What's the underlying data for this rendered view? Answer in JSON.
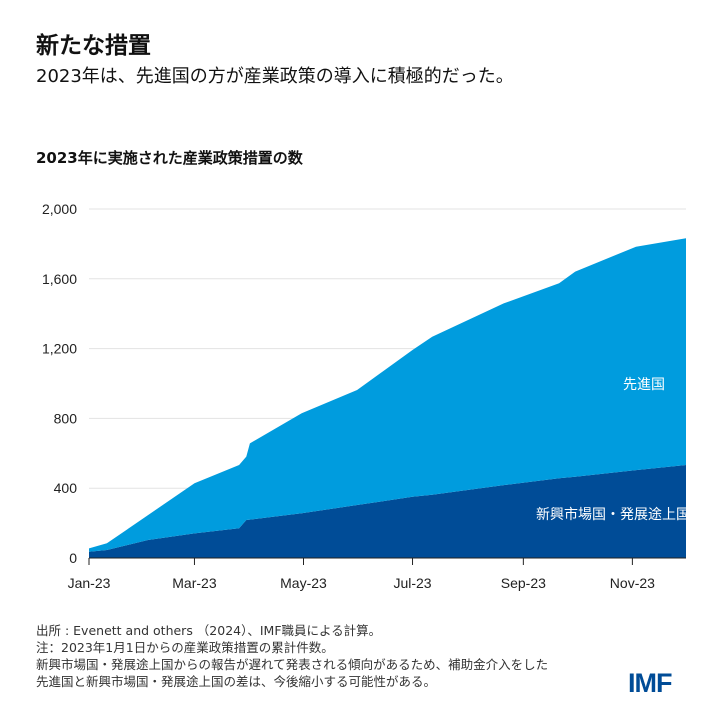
{
  "header": {
    "title": "新たな措置",
    "subtitle": "2023年は、先進国の方が産業政策の導入に積極的だった。"
  },
  "chart_data": {
    "type": "area",
    "stacked": true,
    "title": "2023年に実施された産業政策措置の数",
    "xlabel": "",
    "ylabel": "",
    "ylim": [
      0,
      2000
    ],
    "yticks": [
      0,
      400,
      800,
      1200,
      1600,
      2000
    ],
    "ytick_labels": [
      "0",
      "400",
      "800",
      "1,200",
      "1,600",
      "2,000"
    ],
    "xticks": [
      "2023-01-01",
      "2023-03-01",
      "2023-05-01",
      "2023-07-01",
      "2023-09-01",
      "2023-11-01"
    ],
    "xtick_labels": [
      "Jan-23",
      "Mar-23",
      "May-23",
      "Jul-23",
      "Sep-23",
      "Nov-23"
    ],
    "xlim": [
      "2023-01-01",
      "2023-12-01"
    ],
    "grid": true,
    "x": [
      "2023-01-01",
      "2023-01-11",
      "2023-02-03",
      "2023-03-01",
      "2023-03-26",
      "2023-03-30",
      "2023-04-01",
      "2023-04-30",
      "2023-05-31",
      "2023-07-01",
      "2023-07-12",
      "2023-08-21",
      "2023-09-21",
      "2023-09-30",
      "2023-11-03",
      "2023-12-01"
    ],
    "series": [
      {
        "name": "新興市場国・発展途上国",
        "color": "#004c97",
        "values": [
          36,
          46,
          103,
          141,
          170,
          218,
          220,
          256,
          304,
          351,
          362,
          418,
          457,
          466,
          504,
          533
        ]
      },
      {
        "name": "先進国",
        "color": "#009cde",
        "values": [
          19,
          38,
          143,
          287,
          363,
          363,
          437,
          573,
          659,
          841,
          906,
          1041,
          1117,
          1175,
          1280,
          1299
        ]
      }
    ]
  },
  "notes": {
    "source": "出所 : Evenett and others （2024）、IMF職員による計算。",
    "note": "注：2023年1月1日からの産業政策措置の累計件数。",
    "line3": "新興市場国・発展途上国からの報告が遅れて発表される傾向があるため、補助金介入をした",
    "line4": "先進国と新興市場国・発展途上国の差は、今後縮小する可能性がある。"
  },
  "logo": "IMF"
}
